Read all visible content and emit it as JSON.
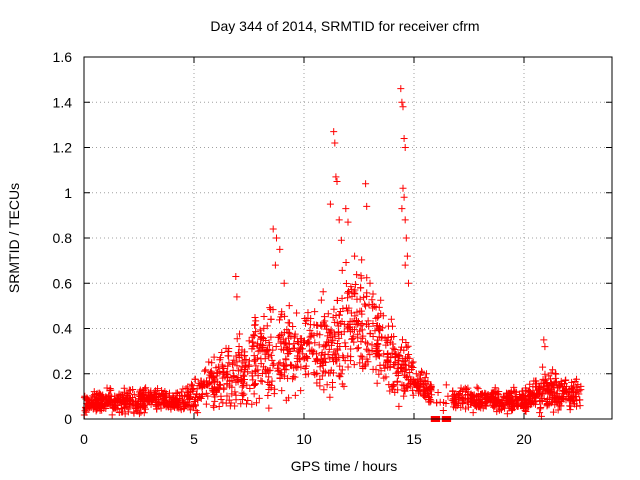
{
  "chart_data": {
    "type": "scatter",
    "title": "Day 344 of 2014, SRMTID for receiver cfrm",
    "xlabel": "GPS time / hours",
    "ylabel": "SRMTID / TECUs",
    "xlim": [
      0,
      24
    ],
    "ylim": [
      0,
      1.6
    ],
    "xticks": [
      0,
      5,
      10,
      15,
      20
    ],
    "xtick_labels": [
      "0",
      "5",
      "10",
      "15",
      "20"
    ],
    "yticks": [
      0,
      0.2,
      0.4,
      0.6,
      0.8,
      1.0,
      1.2,
      1.4,
      1.6
    ],
    "ytick_labels": [
      "0",
      "0.2",
      "0.4",
      "0.6",
      "0.8",
      "1",
      "1.2",
      "1.4",
      "1.6"
    ],
    "grid": true,
    "marker": "+",
    "color": "#ff0000",
    "envelope": {
      "x": [
        0,
        1,
        2,
        3,
        4,
        4.5,
        5,
        5.5,
        6,
        6.5,
        7,
        7.5,
        8,
        8.5,
        9,
        9.5,
        10,
        10.5,
        11,
        11.5,
        12,
        12.5,
        13,
        13.5,
        14,
        14.5,
        15,
        15.5,
        16,
        16.5,
        17,
        17.5,
        18,
        18.5,
        19,
        19.5,
        20,
        20.5,
        21,
        21.5,
        22,
        22.6
      ],
      "y": [
        0.07,
        0.075,
        0.08,
        0.085,
        0.08,
        0.085,
        0.1,
        0.13,
        0.17,
        0.2,
        0.22,
        0.23,
        0.25,
        0.28,
        0.3,
        0.3,
        0.32,
        0.31,
        0.3,
        0.34,
        0.4,
        0.42,
        0.4,
        0.33,
        0.25,
        0.22,
        0.18,
        0.14,
        0.1,
        0.09,
        0.09,
        0.09,
        0.085,
        0.085,
        0.08,
        0.085,
        0.08,
        0.1,
        0.14,
        0.12,
        0.1,
        0.12
      ],
      "spread": [
        0.03,
        0.035,
        0.04,
        0.04,
        0.03,
        0.04,
        0.05,
        0.06,
        0.08,
        0.1,
        0.12,
        0.13,
        0.15,
        0.16,
        0.15,
        0.13,
        0.12,
        0.13,
        0.15,
        0.17,
        0.18,
        0.17,
        0.15,
        0.13,
        0.12,
        0.1,
        0.07,
        0.05,
        0.04,
        0.04,
        0.04,
        0.04,
        0.035,
        0.035,
        0.035,
        0.035,
        0.035,
        0.05,
        0.08,
        0.06,
        0.05,
        0.05
      ],
      "point_count": 1900
    },
    "peaks": [
      {
        "x": 6.9,
        "y": 0.63
      },
      {
        "x": 6.95,
        "y": 0.54
      },
      {
        "x": 8.6,
        "y": 0.84
      },
      {
        "x": 8.75,
        "y": 0.8
      },
      {
        "x": 8.9,
        "y": 0.75
      },
      {
        "x": 8.7,
        "y": 0.68
      },
      {
        "x": 9.1,
        "y": 0.6
      },
      {
        "x": 11.35,
        "y": 1.27
      },
      {
        "x": 11.4,
        "y": 1.22
      },
      {
        "x": 11.45,
        "y": 1.07
      },
      {
        "x": 11.5,
        "y": 1.05
      },
      {
        "x": 11.2,
        "y": 0.95
      },
      {
        "x": 11.6,
        "y": 0.88
      },
      {
        "x": 11.7,
        "y": 0.79
      },
      {
        "x": 11.9,
        "y": 0.93
      },
      {
        "x": 12.0,
        "y": 0.87
      },
      {
        "x": 12.3,
        "y": 0.72
      },
      {
        "x": 12.8,
        "y": 1.04
      },
      {
        "x": 12.85,
        "y": 0.94
      },
      {
        "x": 13.0,
        "y": 0.6
      },
      {
        "x": 14.4,
        "y": 1.46
      },
      {
        "x": 14.45,
        "y": 1.4
      },
      {
        "x": 14.5,
        "y": 1.38
      },
      {
        "x": 14.55,
        "y": 1.24
      },
      {
        "x": 14.6,
        "y": 1.2
      },
      {
        "x": 14.5,
        "y": 1.02
      },
      {
        "x": 14.55,
        "y": 0.98
      },
      {
        "x": 14.6,
        "y": 0.88
      },
      {
        "x": 14.65,
        "y": 0.8
      },
      {
        "x": 14.7,
        "y": 0.72
      },
      {
        "x": 14.6,
        "y": 0.68
      },
      {
        "x": 14.75,
        "y": 0.6
      },
      {
        "x": 14.45,
        "y": 0.93
      },
      {
        "x": 20.9,
        "y": 0.35
      },
      {
        "x": 20.95,
        "y": 0.32
      }
    ],
    "zero_points": [
      {
        "x": 15.9,
        "y": 0
      },
      {
        "x": 16.05,
        "y": 0
      },
      {
        "x": 16.4,
        "y": 0
      },
      {
        "x": 16.55,
        "y": 0
      }
    ]
  }
}
